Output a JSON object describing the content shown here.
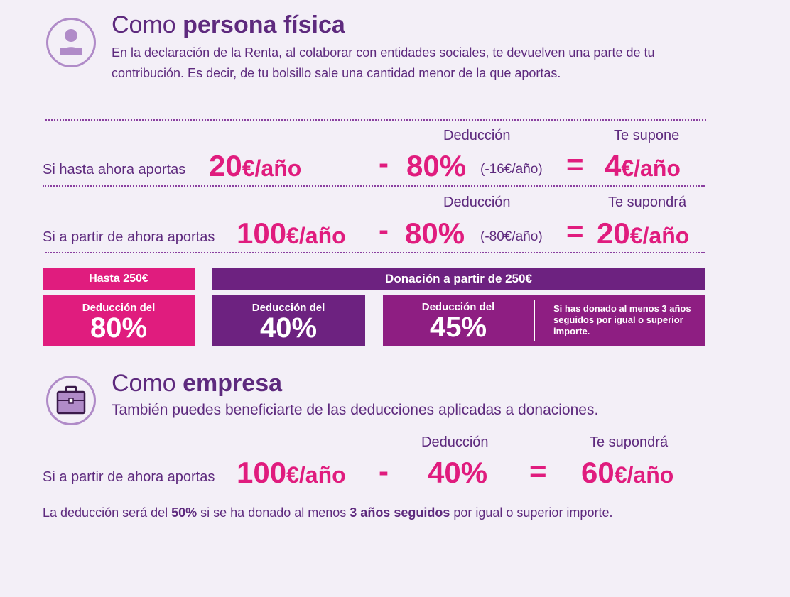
{
  "persona": {
    "title_pre": "Como ",
    "title_bold": "persona física",
    "description": "En la declaración de la Renta, al colaborar con entidades sociales, te devuelven una parte de tu contribución. Es decir, de tu bolsillo sale una cantidad menor de la que aportas.",
    "icon": "person-icon",
    "row1": {
      "label": "Si hasta ahora aportas",
      "amount": "20",
      "unit": "€/año",
      "minus": "-",
      "deduction_header": "Deducción",
      "deduction": "80%",
      "deduction_note": "(-16€/año)",
      "equals": "=",
      "result_header": "Te supone",
      "result_amount": "4",
      "result_unit": "€/año"
    },
    "row2": {
      "label": "Si a partir de ahora aportas",
      "amount": "100",
      "unit": "€/año",
      "minus": "-",
      "deduction_header": "Deducción",
      "deduction": "80%",
      "deduction_note": "(-80€/año)",
      "equals": "=",
      "result_header": "Te supondrá",
      "result_amount": "20",
      "result_unit": "€/año"
    },
    "table": {
      "header_left": "Hasta 250€",
      "header_right": "Donación a partir de 250€",
      "box1_label": "Deducción del",
      "box1_value": "80%",
      "box2_label": "Deducción del",
      "box2_value": "40%",
      "box3_label": "Deducción del",
      "box3_value": "45%",
      "box3_note": "Si has donado al menos 3 años seguidos por igual o superior importe."
    }
  },
  "empresa": {
    "title_pre": "Como ",
    "title_bold": "empresa",
    "description": "También puedes beneficiarte de las deducciones aplicadas a donaciones.",
    "icon": "briefcase-icon",
    "row": {
      "label": "Si a partir de ahora aportas",
      "amount": "100",
      "unit": "€/año",
      "minus": "-",
      "deduction_header": "Deducción",
      "deduction": "40%",
      "equals": "=",
      "result_header": "Te supondrá",
      "result_amount": "60",
      "result_unit": "€/año"
    },
    "note_pre": "La deducción será del ",
    "note_b1": "50%",
    "note_mid": " si se ha donado al menos ",
    "note_b2": "3 años seguidos",
    "note_post": " por igual o superior importe."
  },
  "colors": {
    "background": "#f3eff7",
    "text_purple": "#5e2a7e",
    "accent_pink": "#e01c7e",
    "box_purple": "#6d2280",
    "box_magenta": "#8e1e82"
  }
}
